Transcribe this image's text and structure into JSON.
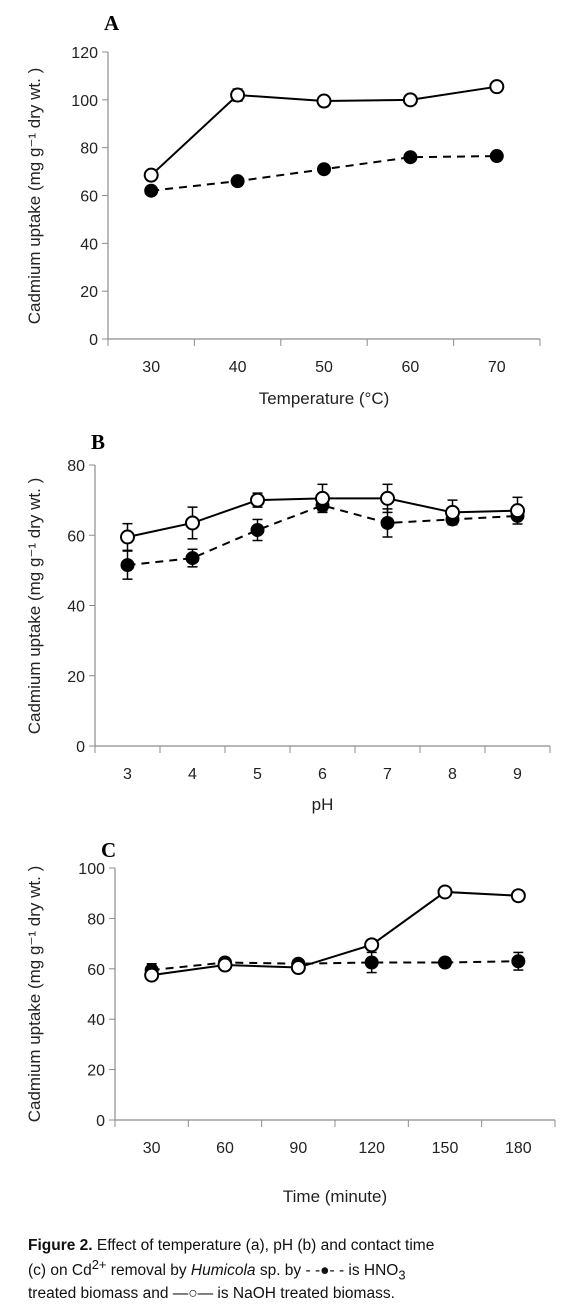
{
  "chart_data": [
    {
      "type": "line",
      "panel_label": "A",
      "xlabel": "Temperature (°C)",
      "ylabel": "Cadmium uptake (mg g⁻¹ dry wt. )",
      "categories": [
        "30",
        "40",
        "50",
        "60",
        "70"
      ],
      "ylim": [
        0,
        120
      ],
      "yticks": [
        0,
        20,
        40,
        60,
        80,
        100,
        120
      ],
      "grid": false,
      "series": [
        {
          "marker": "open-circle",
          "line": "solid",
          "values": [
            68.5,
            102,
            99.5,
            100,
            105.5
          ],
          "errors": [
            0,
            2.5,
            0,
            0,
            0
          ]
        },
        {
          "marker": "filled-circle",
          "line": "dashed",
          "values": [
            62,
            66,
            71,
            76,
            76.5
          ],
          "errors": [
            0,
            0,
            0,
            0,
            0
          ]
        }
      ]
    },
    {
      "type": "line",
      "panel_label": "B",
      "xlabel": "pH",
      "ylabel": "Cadmium uptake (mg g⁻¹ dry wt. )",
      "categories": [
        "3",
        "4",
        "5",
        "6",
        "7",
        "8",
        "9"
      ],
      "ylim": [
        0,
        80
      ],
      "yticks": [
        0,
        20,
        40,
        60,
        80
      ],
      "grid": false,
      "series": [
        {
          "marker": "open-circle",
          "line": "solid",
          "values": [
            59.5,
            63.5,
            70,
            70.5,
            70.5,
            66.5,
            67
          ],
          "errors": [
            3.8,
            4.5,
            2,
            4,
            4,
            3.5,
            3.8
          ]
        },
        {
          "marker": "filled-circle",
          "line": "dashed",
          "values": [
            51.5,
            53.5,
            61.5,
            68.5,
            63.5,
            64.5,
            65.5
          ],
          "errors": [
            4,
            2.5,
            3,
            1.5,
            4,
            0,
            0
          ]
        }
      ]
    },
    {
      "type": "line",
      "panel_label": "C",
      "xlabel": "Time (minute)",
      "ylabel": "Cadmium uptake (mg g⁻¹ dry wt. )",
      "categories": [
        "30",
        "60",
        "90",
        "120",
        "150",
        "180"
      ],
      "ylim": [
        0,
        100
      ],
      "yticks": [
        0,
        20,
        40,
        60,
        80,
        100
      ],
      "grid": false,
      "series": [
        {
          "marker": "open-circle",
          "line": "solid",
          "values": [
            57.5,
            61.5,
            60.5,
            69.5,
            90.5,
            89
          ],
          "errors": [
            0,
            0,
            0,
            2,
            0,
            0
          ]
        },
        {
          "marker": "filled-circle",
          "line": "dashed",
          "values": [
            59.5,
            62.5,
            62,
            62.5,
            62.5,
            63
          ],
          "errors": [
            2.5,
            1.5,
            0,
            4,
            0,
            3.5
          ]
        }
      ]
    }
  ],
  "caption": {
    "label": "Figure 2.",
    "line1": "Effect of temperature (a), pH (b) and contact time",
    "line2a": "(c) on Cd",
    "superscript": "2+",
    "line2b": "removal by",
    "organism": "Humicola",
    "line2c": "sp. by - -●- - is HNO",
    "subscript": "3",
    "line3": "treated biomass and —○— is NaOH treated biomass."
  }
}
